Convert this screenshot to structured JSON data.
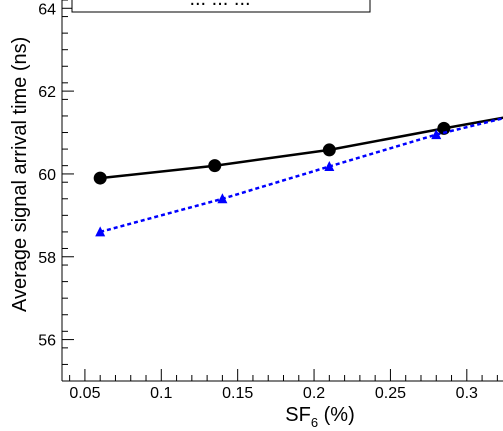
{
  "chart_data": {
    "type": "line",
    "xlabel": {
      "base": "SF",
      "sub": "6",
      "suffix": " (%)"
    },
    "ylabel": "Average signal arrival time (ns)",
    "xlim": [
      0.035,
      0.325
    ],
    "ylim": [
      55.0,
      64.2
    ],
    "x_ticks": [
      "0.05",
      "0.1",
      "0.15",
      "0.2",
      "0.25",
      "0.3"
    ],
    "y_ticks": [
      "56",
      "58",
      "60",
      "62",
      "64"
    ],
    "legend_partial": "... ... ...",
    "series": [
      {
        "color": "#000000",
        "line_style": "solid",
        "marker": "circle",
        "x": [
          0.06,
          0.135,
          0.21,
          0.285,
          0.33
        ],
        "y": [
          59.9,
          60.2,
          60.58,
          61.1,
          61.4
        ]
      },
      {
        "color": "#0000ff",
        "line_style": "dashed",
        "marker": "triangle",
        "x": [
          0.06,
          0.14,
          0.21,
          0.28,
          0.33
        ],
        "y": [
          58.6,
          59.4,
          60.18,
          60.95,
          61.4
        ]
      }
    ]
  }
}
